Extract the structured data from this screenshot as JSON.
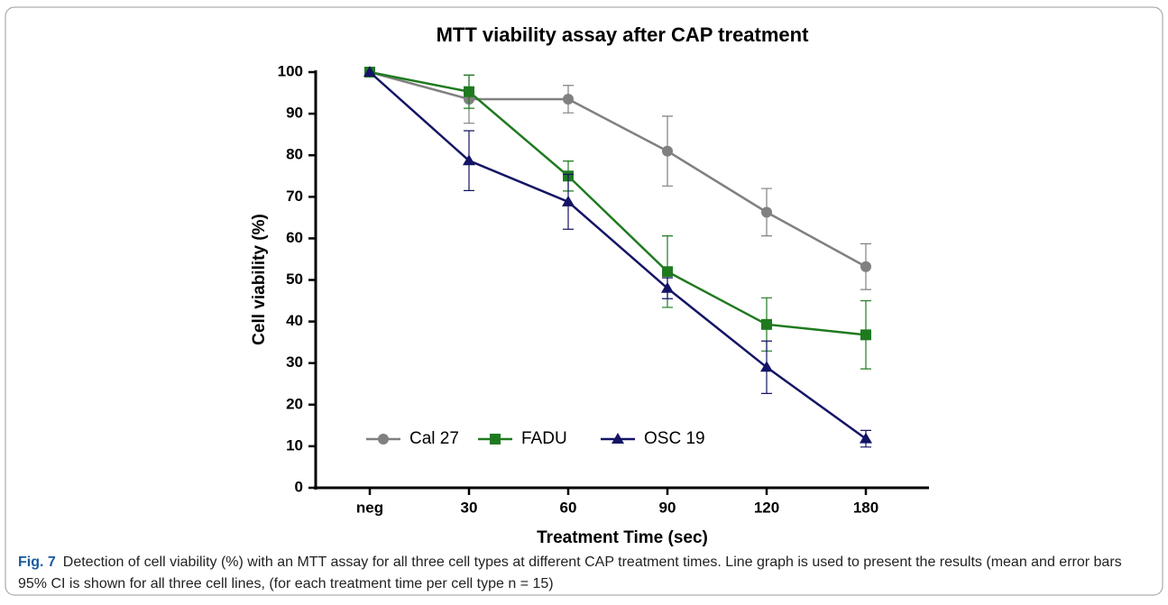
{
  "chart_data": {
    "type": "line",
    "title": "MTT viability assay after CAP treatment",
    "x_label": "Treatment Time (sec)",
    "y_label": "Cell viability (%)",
    "categories": [
      "neg",
      "30",
      "60",
      "90",
      "120",
      "180"
    ],
    "series": [
      {
        "name": "Cal 27",
        "color": "#808080",
        "marker": "circle",
        "values": [
          100,
          93.5,
          93.5,
          81,
          66.3,
          53.2
        ],
        "errors": [
          0,
          5.8,
          3.3,
          8.4,
          5.7,
          5.5
        ]
      },
      {
        "name": "FADU",
        "color": "#1f7a1f",
        "marker": "square",
        "values": [
          100,
          95.3,
          75,
          52,
          39.3,
          36.8
        ],
        "errors": [
          0,
          4,
          3.6,
          8.6,
          6.4,
          8.2
        ]
      },
      {
        "name": "OSC 19",
        "color": "#141466",
        "marker": "triangle",
        "values": [
          100,
          78.7,
          68.8,
          48,
          29,
          11.8
        ],
        "errors": [
          0,
          7.2,
          6.6,
          2.5,
          6.3,
          2
        ]
      }
    ],
    "ylim": [
      0,
      100
    ],
    "yticks": [
      0,
      10,
      20,
      30,
      40,
      50,
      60,
      70,
      80,
      90,
      100
    ],
    "legend": "lower left",
    "grid": false
  },
  "caption": {
    "label": "Fig. 7",
    "text": "Detection of cell viability (%) with an MTT assay for all three cell types at different CAP treatment times. Line graph is used to present the results (mean and error bars 95% CI is shown for all three cell lines, (for each treatment time per cell type n = 15)"
  }
}
